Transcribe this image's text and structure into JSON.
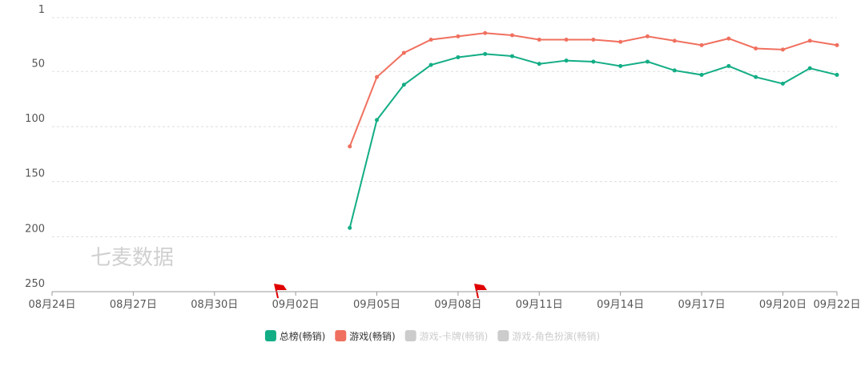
{
  "chart_data": {
    "type": "line",
    "watermark": "七麦数据",
    "categories": [
      "08月24日",
      null,
      null,
      "08月27日",
      null,
      null,
      "08月30日",
      null,
      null,
      "09月02日",
      null,
      null,
      "09月05日",
      null,
      null,
      "09月08日",
      null,
      null,
      "09月11日",
      null,
      null,
      "09月14日",
      null,
      null,
      "09月17日",
      null,
      null,
      "09月20日",
      null,
      "09月22日"
    ],
    "series": [
      {
        "name": "总榜(畅销)",
        "color": "#13ad85",
        "values": [
          null,
          null,
          null,
          null,
          null,
          null,
          null,
          null,
          null,
          null,
          null,
          192,
          94,
          62,
          44,
          37,
          34,
          36,
          43,
          40,
          41,
          45,
          41,
          49,
          53,
          45,
          55,
          61,
          47,
          53
        ]
      },
      {
        "name": "游戏(畅销)",
        "color": "#f0705f",
        "values": [
          null,
          null,
          null,
          null,
          null,
          null,
          null,
          null,
          null,
          null,
          null,
          118,
          55,
          33,
          21,
          18,
          15,
          17,
          21,
          21,
          21,
          23,
          18,
          22,
          26,
          20,
          29,
          30,
          22,
          26
        ]
      },
      {
        "name": "游戏-卡牌(畅销)",
        "color": "#cccccc",
        "disabled": true,
        "values": [
          null,
          null,
          null,
          null,
          null,
          null,
          null,
          null,
          null,
          null,
          null,
          null,
          null,
          null,
          null,
          null,
          null,
          null,
          null,
          null,
          null,
          null,
          null,
          null,
          null,
          null,
          null,
          null,
          null,
          null
        ]
      },
      {
        "name": "游戏-角色扮演(畅销)",
        "color": "#cccccc",
        "disabled": true,
        "values": [
          null,
          null,
          null,
          null,
          null,
          null,
          null,
          null,
          null,
          null,
          null,
          null,
          null,
          null,
          null,
          null,
          null,
          null,
          null,
          null,
          null,
          null,
          null,
          null,
          null,
          null,
          null,
          null,
          null,
          null
        ]
      }
    ],
    "ylim": [
      1,
      250
    ],
    "y_inverted": true,
    "yticks": [
      1,
      50,
      100,
      150,
      200,
      250
    ],
    "grid": true,
    "legend": "bottom"
  }
}
